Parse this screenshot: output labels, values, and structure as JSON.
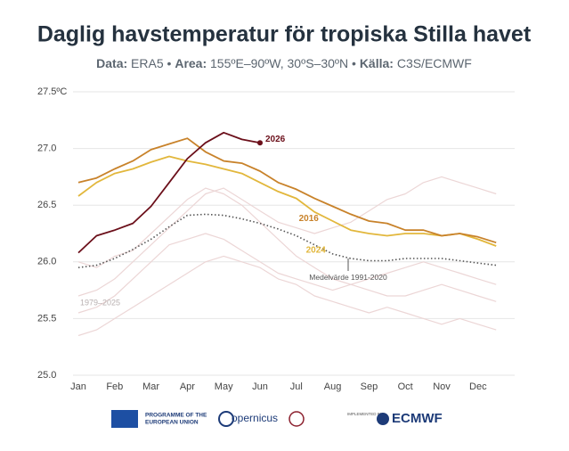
{
  "chart_data": {
    "type": "line",
    "title": "Daglig havstemperatur för tropiska Stilla havet",
    "subtitle": [
      {
        "text": "Data:",
        "bold": true
      },
      {
        "text": " ERA5 • ",
        "bold": false
      },
      {
        "text": "Area:",
        "bold": true
      },
      {
        "text": " 155ºE–90ºW, 30ºS–30ºN • ",
        "bold": false
      },
      {
        "text": "Källa:",
        "bold": true
      },
      {
        "text": " C3S/ECMWF",
        "bold": false
      }
    ],
    "categories": [
      "Jan",
      null,
      "Feb",
      null,
      "Mar",
      null,
      "Apr",
      null,
      "May",
      null,
      "Jun",
      null,
      "Jul",
      null,
      "Aug",
      null,
      "Sep",
      null,
      "Oct",
      null,
      "Nov",
      null,
      "Dec",
      null
    ],
    "ylim": [
      25.0,
      27.5
    ],
    "yticks": [
      {
        "value": 25.0,
        "label": "25.0"
      },
      25.5,
      {
        "value": 26.0,
        "label": "26.0"
      },
      26.5,
      {
        "value": 27.0,
        "label": "27.0"
      },
      {
        "value": 27.5,
        "label": "27.5ºC"
      }
    ],
    "grid": true,
    "series": [
      {
        "color": "#ecd6d6",
        "values": [
          25.35,
          25.4,
          25.5,
          25.6,
          25.7,
          25.8,
          25.9,
          26.0,
          26.05,
          26.0,
          25.95,
          25.85,
          25.8,
          25.7,
          25.65,
          25.6,
          25.55,
          25.6,
          25.55,
          25.5,
          25.45,
          25.5,
          25.45,
          25.4
        ]
      },
      {
        "color": "#ecd6d6",
        "values": [
          25.7,
          25.75,
          25.85,
          26.0,
          26.15,
          26.3,
          26.45,
          26.6,
          26.65,
          26.55,
          26.45,
          26.35,
          26.3,
          26.25,
          26.3,
          26.35,
          26.45,
          26.55,
          26.6,
          26.7,
          26.75,
          26.7,
          26.65,
          26.6
        ]
      },
      {
        "color": "#ecd6d6",
        "values": [
          26.0,
          25.95,
          26.05,
          26.1,
          26.25,
          26.4,
          26.55,
          26.65,
          26.6,
          26.5,
          26.35,
          26.2,
          26.05,
          25.95,
          25.85,
          25.8,
          25.75,
          25.7,
          25.7,
          25.75,
          25.8,
          25.75,
          25.7,
          25.65
        ]
      },
      {
        "color": "#ecd6d6",
        "values": [
          25.55,
          25.6,
          25.7,
          25.85,
          26.0,
          26.15,
          26.2,
          26.25,
          26.2,
          26.1,
          26.0,
          25.9,
          25.85,
          25.8,
          25.75,
          25.8,
          25.85,
          25.9,
          25.95,
          26.0,
          25.95,
          25.9,
          25.85,
          25.8
        ]
      },
      {
        "color": "#545454",
        "dashed": true,
        "values": [
          25.95,
          25.97,
          26.03,
          26.11,
          26.2,
          26.31,
          26.41,
          26.42,
          26.41,
          26.38,
          26.34,
          26.29,
          26.23,
          26.15,
          26.07,
          26.03,
          26.01,
          26.01,
          26.03,
          26.03,
          26.03,
          26.01,
          25.99,
          25.97
        ]
      },
      {
        "name": "2024",
        "color": "#e2b73c",
        "values": [
          26.58,
          26.7,
          26.78,
          26.82,
          26.88,
          26.93,
          26.89,
          26.86,
          26.82,
          26.78,
          26.7,
          26.62,
          26.56,
          26.44,
          26.36,
          26.28,
          26.25,
          26.23,
          26.25,
          26.25,
          26.23,
          26.25,
          26.2,
          26.14
        ]
      },
      {
        "name": "2016",
        "color": "#c8822a",
        "values": [
          26.7,
          26.74,
          26.82,
          26.89,
          26.99,
          27.04,
          27.09,
          26.97,
          26.89,
          26.87,
          26.8,
          26.7,
          26.64,
          26.56,
          26.49,
          26.42,
          26.36,
          26.34,
          26.28,
          26.28,
          26.23,
          26.25,
          26.22,
          26.17
        ]
      },
      {
        "name": "2026",
        "color": "#6b0f1a",
        "values": [
          26.08,
          26.23,
          26.28,
          26.34,
          26.49,
          26.7,
          26.91,
          27.05,
          27.14,
          27.08,
          27.05,
          null,
          null,
          null,
          null,
          null,
          null,
          null,
          null,
          null,
          null,
          null,
          null,
          null
        ]
      }
    ],
    "annotations": [
      "Medelvärde 1991-2020",
      "1979–2025"
    ],
    "footer": [
      "PROGRAMME OF THE",
      "EUROPEAN UNION",
      "opernicus",
      "IMPLEMENTED BY",
      "ECMWF"
    ]
  }
}
